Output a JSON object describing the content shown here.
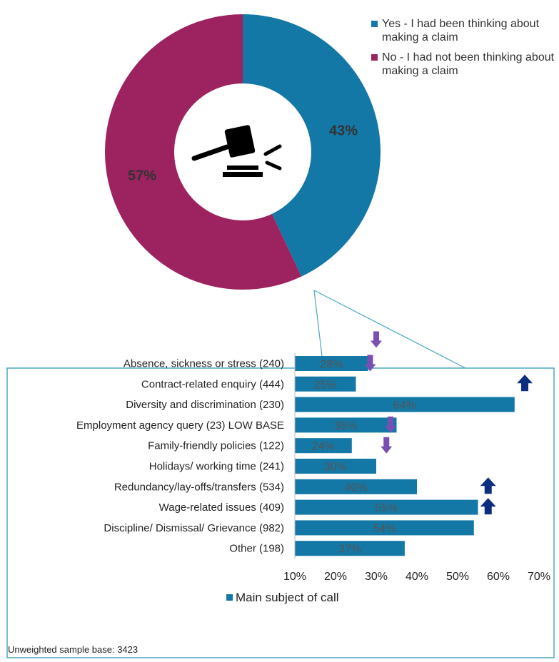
{
  "chart_data": [
    {
      "type": "pie",
      "variant": "donut",
      "slices": [
        {
          "label": "Yes - I had been thinking about making a claim",
          "value": 43,
          "display": "43%",
          "color": "#1378a6"
        },
        {
          "label": "No - I had not been thinking about making a claim",
          "value": 57,
          "display": "57%",
          "color": "#9c2260"
        }
      ],
      "center_icon": "gavel-icon",
      "legend_position": "top-right"
    },
    {
      "type": "bar",
      "orientation": "horizontal",
      "categories": [
        "Absence, sickness or stress (240)",
        "Contract-related enquiry (444)",
        "Diversity and discrimination (230)",
        "Employment agency query (23) LOW BASE",
        "Family-friendly policies (122)",
        "Holidays/ working time (241)",
        "Redundancy/lay-offs/transfers (534)",
        "Wage-related issues (409)",
        "Discipline/ Dismissal/ Grievance (982)",
        "Other (198)"
      ],
      "series": [
        {
          "name": "Main subject of call",
          "values": [
            28,
            25,
            64,
            35,
            24,
            30,
            40,
            55,
            54,
            37
          ],
          "color": "#1378a6"
        }
      ],
      "value_labels": [
        "28%",
        "25%",
        "64%",
        "35%",
        "24%",
        "30%",
        "40%",
        "55%",
        "54%",
        "37%"
      ],
      "xlim": [
        10,
        70
      ],
      "x_ticks": [
        "10%",
        "20%",
        "30%",
        "40%",
        "50%",
        "60%",
        "70%"
      ],
      "legend_position": "bottom",
      "significance_arrows": [
        {
          "category_index": 0,
          "direction": "down",
          "value": 30,
          "color": "#7a4fb3"
        },
        {
          "category_index": 0,
          "direction": "down",
          "value": 28.5,
          "color": "#7a4fb3"
        },
        {
          "category_index": 1,
          "direction": "up",
          "value": 66.5,
          "color": "#0d2e80"
        },
        {
          "category_index": 3,
          "direction": "down",
          "value": 33.5,
          "color": "#7a4fb3"
        },
        {
          "category_index": 4,
          "direction": "down",
          "value": 32.5,
          "color": "#7a4fb3"
        },
        {
          "category_index": 6,
          "direction": "up",
          "value": 57.5,
          "color": "#0d2e80"
        },
        {
          "category_index": 7,
          "direction": "up",
          "value": 57.5,
          "color": "#0d2e80"
        }
      ]
    }
  ],
  "footnote": "Unweighted sample base: 3423"
}
